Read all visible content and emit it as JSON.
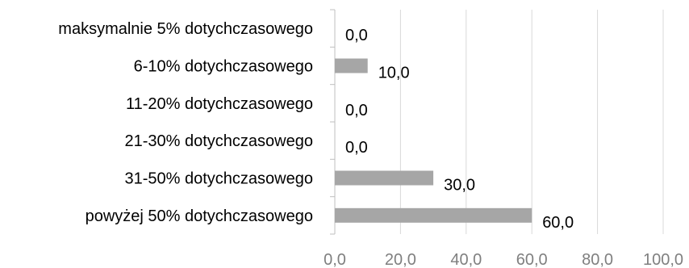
{
  "chart_data": {
    "type": "bar",
    "orientation": "horizontal",
    "categories": [
      "maksymalnie  5% dotychczasowego",
      "6-10% dotychczasowego",
      "11-20% dotychczasowego",
      "21-30% dotychczasowego",
      "31-50% dotychczasowego",
      "powyżej 50% dotychczasowego"
    ],
    "values": [
      0.0,
      10.0,
      0.0,
      0.0,
      30.0,
      60.0
    ],
    "data_labels": [
      "0,0",
      "10,0",
      "0,0",
      "0,0",
      "30,0",
      "60,0"
    ],
    "xticks": [
      0,
      20,
      40,
      60,
      80,
      100
    ],
    "xtick_labels": [
      "0,0",
      "20,0",
      "40,0",
      "60,0",
      "80,0",
      "100,0"
    ],
    "xlim": [
      0,
      100
    ],
    "title": "",
    "xlabel": "",
    "ylabel": "",
    "grid": true,
    "legend": "none",
    "bar_color": "#a6a6a6",
    "gridline_color": "#d9d9d9",
    "axis_color": "#bfbfbf"
  }
}
